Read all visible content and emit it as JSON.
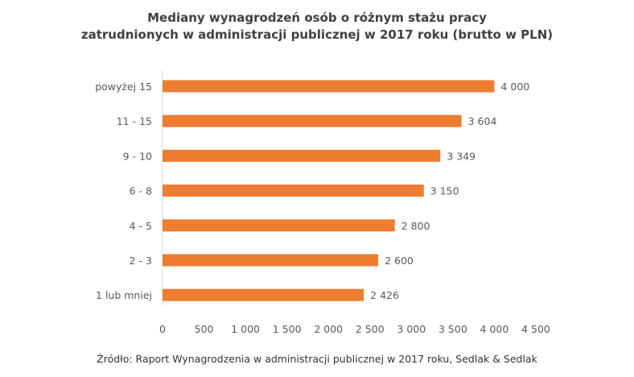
{
  "title_lines": [
    "Mediany wynagrodzeń osób o różnym stażu pracy",
    "zatrudnionych w administracji publicznej w 2017 roku (brutto w PLN)"
  ],
  "source": "Źródło: Raport Wynagrodzenia w administracji publicznej w 2017 roku, Sedlak & Sedlak",
  "colors": {
    "bar": "#ED7D31",
    "axis": "#D9D9D9",
    "text": "#595959"
  },
  "chart_data": {
    "type": "bar",
    "orientation": "horizontal",
    "categories": [
      "powyżej 15",
      "11 - 15",
      "9 - 10",
      "6 - 8",
      "4 - 5",
      "2 - 3",
      "1 lub mniej"
    ],
    "values": [
      4000,
      3604,
      3349,
      3150,
      2800,
      2600,
      2426
    ],
    "value_labels": [
      "4 000",
      "3 604",
      "3 349",
      "3 150",
      "2 800",
      "2 600",
      "2 426"
    ],
    "xlim": [
      0,
      4500
    ],
    "x_ticks": [
      0,
      500,
      1000,
      1500,
      2000,
      2500,
      3000,
      3500,
      4000,
      4500
    ],
    "x_tick_labels": [
      "0",
      "500",
      "1 000",
      "1 500",
      "2 000",
      "2 500",
      "3 000",
      "3 500",
      "4 000",
      "4 500"
    ],
    "gridlines": false,
    "legend": "none"
  }
}
